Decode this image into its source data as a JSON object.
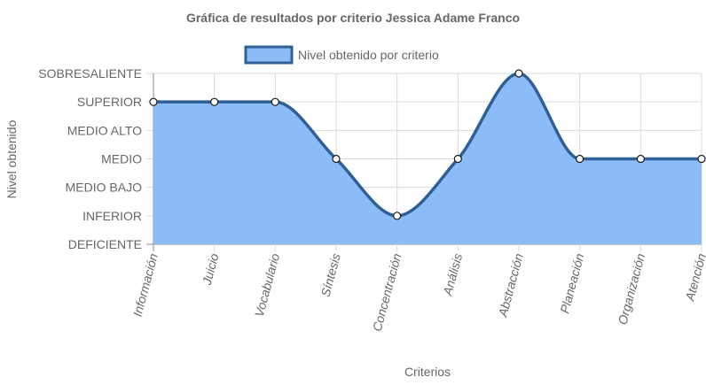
{
  "colors": {
    "line": "#2f5f94",
    "fill": "#8bbcf7",
    "point_fill": "#ffffff",
    "text": "#666666"
  },
  "chart_data": {
    "type": "area",
    "title": "Gráfica de resultados por criterio Jessica Adame Franco",
    "xlabel": "Criterios",
    "ylabel": "Nivel obtenido",
    "categories": [
      "Información",
      "Juicio",
      "Vocabulario",
      "Síntesis",
      "Concentración",
      "Análisis",
      "Abstracción",
      "Planeación",
      "Organización",
      "Atención"
    ],
    "y_levels": [
      "DEFICIENTE",
      "INFERIOR",
      "MEDIO BAJO",
      "MEDIO",
      "MEDIO ALTO",
      "SUPERIOR",
      "SOBRESALIENTE"
    ],
    "ylim": [
      0,
      6
    ],
    "legend_position": "top",
    "grid": true,
    "series": [
      {
        "name": "Nivel obtenido por criterio",
        "values": [
          5,
          5,
          5,
          3,
          1,
          3,
          6,
          3,
          3,
          3
        ]
      }
    ]
  }
}
